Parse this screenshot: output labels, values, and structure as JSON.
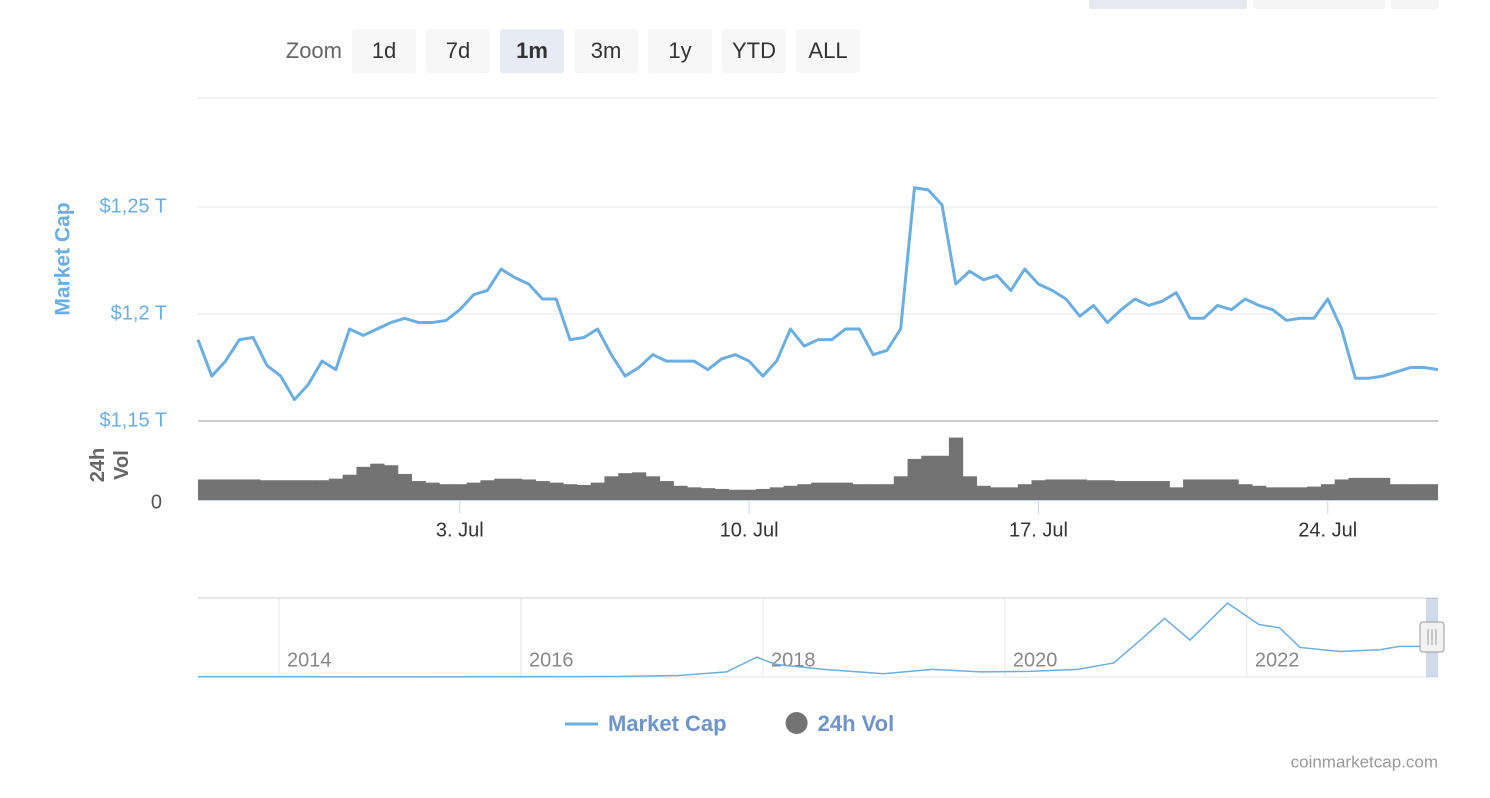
{
  "toolbar": {
    "label": "Zoom",
    "buttons": [
      {
        "label": "1d"
      },
      {
        "label": "7d"
      },
      {
        "label": "1m",
        "active": true
      },
      {
        "label": "3m"
      },
      {
        "label": "1y"
      },
      {
        "label": "YTD"
      },
      {
        "label": "ALL"
      }
    ]
  },
  "chart_data": [
    {
      "type": "line",
      "y_label": "Market Cap",
      "y2_label": "24h Vol",
      "categories": [
        null,
        null,
        null,
        null,
        null,
        null,
        null,
        null,
        null,
        null,
        null,
        null,
        null,
        null,
        null,
        null,
        null,
        null,
        null,
        "3. Jul",
        null,
        null,
        null,
        null,
        null,
        null,
        null,
        null,
        null,
        null,
        null,
        null,
        null,
        null,
        null,
        null,
        null,
        null,
        null,
        null,
        "10. Jul",
        null,
        null,
        null,
        null,
        null,
        null,
        null,
        null,
        null,
        null,
        null,
        null,
        null,
        null,
        null,
        null,
        null,
        null,
        null,
        null,
        "17. Jul",
        null,
        null,
        null,
        null,
        null,
        null,
        null,
        null,
        null,
        null,
        null,
        null,
        null,
        null,
        null,
        null,
        null,
        null,
        null,
        null,
        "24. Jul",
        null,
        null,
        null,
        null,
        null,
        null,
        null,
        null
      ],
      "series": [
        {
          "name": "Market Cap",
          "color": "#6caee0",
          "values": [
            1.188,
            1.171,
            1.178,
            1.188,
            1.189,
            1.176,
            1.171,
            1.16,
            1.167,
            1.178,
            1.174,
            1.193,
            1.19,
            1.193,
            1.196,
            1.198,
            1.196,
            1.196,
            1.197,
            1.202,
            1.209,
            1.211,
            1.221,
            1.217,
            1.214,
            1.207,
            1.207,
            1.188,
            1.189,
            1.193,
            1.181,
            1.171,
            1.175,
            1.181,
            1.178,
            1.178,
            1.178,
            1.174,
            1.179,
            1.181,
            1.178,
            1.171,
            1.178,
            1.193,
            1.185,
            1.188,
            1.188,
            1.193,
            1.193,
            1.181,
            1.183,
            1.193,
            1.259,
            1.258,
            1.251,
            1.214,
            1.22,
            1.216,
            1.218,
            1.211,
            1.221,
            1.214,
            1.211,
            1.207,
            1.199,
            1.204,
            1.196,
            1.202,
            1.207,
            1.204,
            1.206,
            1.21,
            1.198,
            1.198,
            1.204,
            1.202,
            1.207,
            1.204,
            1.202,
            1.197,
            1.198,
            1.198,
            1.207,
            1.193,
            1.17,
            1.17,
            1.171,
            1.173,
            1.175,
            1.175,
            1.174
          ]
        },
        {
          "name": "24h Vol",
          "color": "#737373",
          "type": "bar",
          "axis": "y2",
          "values": [
            26,
            26,
            26,
            26,
            26,
            25,
            25,
            25,
            25,
            25,
            27,
            32,
            42,
            46,
            44,
            33,
            24,
            22,
            20,
            20,
            22,
            25,
            27,
            27,
            26,
            24,
            22,
            20,
            19,
            22,
            30,
            34,
            35,
            30,
            24,
            18,
            16,
            15,
            14,
            13,
            13,
            14,
            16,
            18,
            20,
            22,
            22,
            22,
            20,
            20,
            20,
            30,
            52,
            56,
            56,
            79,
            30,
            18,
            16,
            16,
            20,
            25,
            26,
            26,
            26,
            25,
            25,
            24,
            24,
            24,
            24,
            16,
            26,
            26,
            26,
            26,
            20,
            18,
            16,
            16,
            16,
            17,
            20,
            26,
            28,
            28,
            28,
            20,
            20,
            20,
            20
          ]
        }
      ],
      "ylim": [
        1.15,
        1.3
      ],
      "yticks": [
        {
          "value": 1.15,
          "label": "$1,15 T"
        },
        {
          "value": 1.2,
          "label": "$1,2 T"
        },
        {
          "value": 1.25,
          "label": "$1,25 T"
        }
      ],
      "y2lim": [
        0,
        100
      ],
      "y2ticks": [
        0
      ],
      "grid": true,
      "legend": "bottom"
    },
    {
      "type": "line",
      "color": "#6caee0",
      "x": [
        2013.33,
        2014,
        2015,
        2016,
        2016.8,
        2017.3,
        2017.7,
        2017.95,
        2018.1,
        2018.5,
        2019,
        2019.4,
        2019.8,
        2020.2,
        2020.6,
        2020.9,
        2021.12,
        2021.32,
        2021.53,
        2021.84,
        2022.1,
        2022.27,
        2022.44,
        2022.77,
        2023.1,
        2023.26,
        2023.51
      ],
      "values": [
        0.01,
        0.01,
        0.005,
        0.01,
        0.02,
        0.06,
        0.2,
        0.78,
        0.5,
        0.3,
        0.13,
        0.3,
        0.2,
        0.22,
        0.3,
        0.55,
        1.45,
        2.3,
        1.45,
        2.9,
        2.06,
        1.93,
        1.16,
        1.0,
        1.07,
        1.2,
        1.2
      ],
      "xlim": [
        2013.33,
        2023.58
      ],
      "xticks": [
        2014,
        2016,
        2018,
        2020,
        2022
      ],
      "ylim": [
        0,
        3.1
      ],
      "grid": true
    }
  ],
  "credits": "coinmarketcap.com"
}
